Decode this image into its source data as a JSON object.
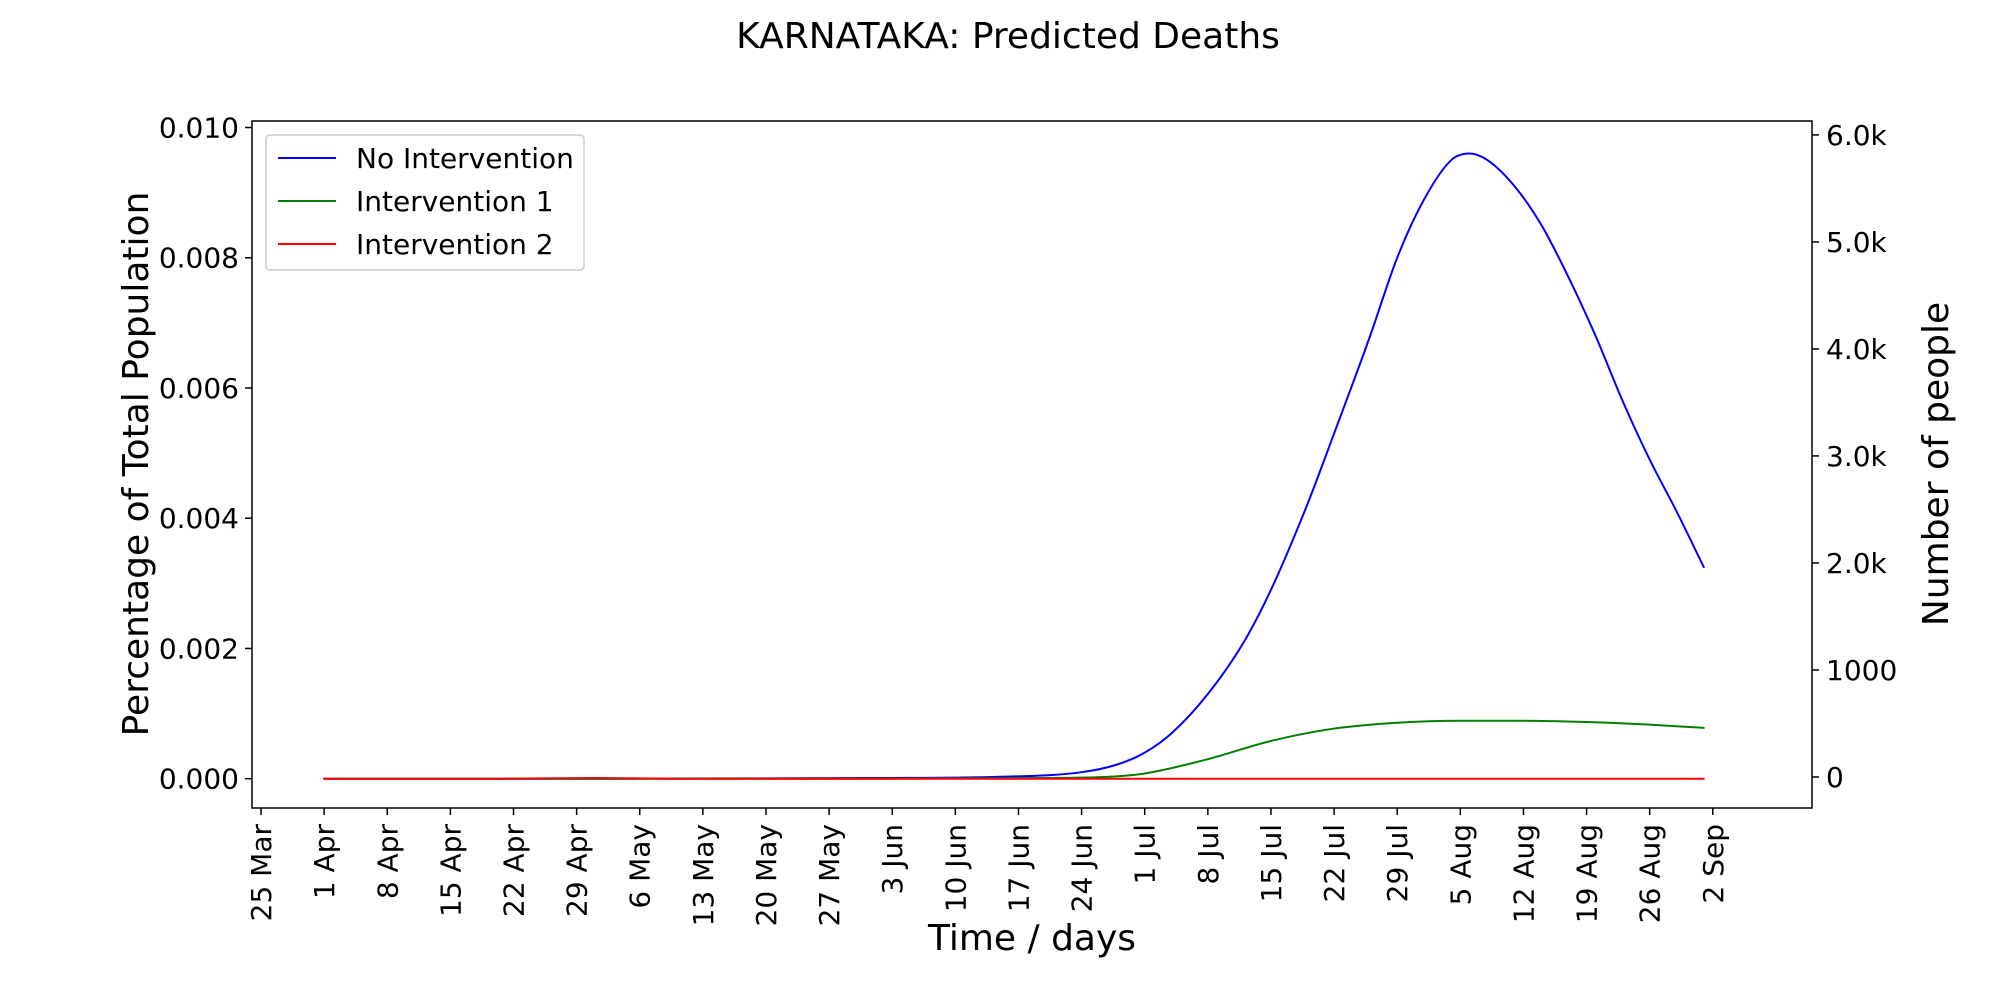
{
  "chart_data": {
    "type": "line",
    "title": "KARNATAKA: Predicted Deaths",
    "xlabel": "Time / days",
    "ylabel": "Percentage of Total Population",
    "ylabel_right": "Number of people",
    "x_ticks": [
      "25 Mar",
      "1 Apr",
      "8 Apr",
      "15 Apr",
      "22 Apr",
      "29 Apr",
      "6 May",
      "13 May",
      "20 May",
      "27 May",
      "3 Jun",
      "10 Jun",
      "17 Jun",
      "24 Jun",
      "1 Jul",
      "8 Jul",
      "15 Jul",
      "22 Jul",
      "29 Jul",
      "5 Aug",
      "12 Aug",
      "19 Aug",
      "26 Aug",
      "2 Sep"
    ],
    "y_ticks": [
      "0.000",
      "0.002",
      "0.004",
      "0.006",
      "0.008",
      "0.010"
    ],
    "y_tick_values": [
      0,
      0.002,
      0.004,
      0.006,
      0.008,
      0.01
    ],
    "y_right_ticks": [
      "0",
      "1000",
      "2.0k",
      "3.0k",
      "4.0k",
      "5.0k",
      "6.0k"
    ],
    "y_right_tick_values": [
      0,
      1000,
      2000,
      3000,
      4000,
      5000,
      6000
    ],
    "ylim": [
      -0.00045,
      0.0101
    ],
    "ylim_right": [
      -290,
      6130
    ],
    "xlim": [
      "2020-03-24",
      "2020-09-13"
    ],
    "legend_position": "upper left",
    "grid": false,
    "series": [
      {
        "name": "No Intervention",
        "color": "#0000ff",
        "x": [
          "2020-04-01",
          "2020-05-01",
          "2020-06-01",
          "2020-06-15",
          "2020-06-24",
          "2020-06-28",
          "2020-07-01",
          "2020-07-04",
          "2020-07-08",
          "2020-07-12",
          "2020-07-15",
          "2020-07-19",
          "2020-07-22",
          "2020-07-26",
          "2020-07-29",
          "2020-08-01",
          "2020-08-04",
          "2020-08-06",
          "2020-08-08",
          "2020-08-11",
          "2020-08-14",
          "2020-08-17",
          "2020-08-20",
          "2020-08-23",
          "2020-08-26",
          "2020-08-29",
          "2020-09-01"
        ],
        "y": [
          0,
          0,
          1e-05,
          3e-05,
          0.0001,
          0.00022,
          0.0004,
          0.0007,
          0.0013,
          0.0021,
          0.0029,
          0.0042,
          0.0053,
          0.0068,
          0.008,
          0.0089,
          0.0095,
          0.0096,
          0.0095,
          0.0091,
          0.0085,
          0.0077,
          0.0068,
          0.0058,
          0.0049,
          0.0041,
          0.00325
        ]
      },
      {
        "name": "Intervention 1",
        "color": "#008000",
        "x": [
          "2020-04-01",
          "2020-05-01",
          "2020-06-01",
          "2020-06-20",
          "2020-06-27",
          "2020-07-01",
          "2020-07-08",
          "2020-07-15",
          "2020-07-22",
          "2020-07-29",
          "2020-08-05",
          "2020-08-12",
          "2020-08-19",
          "2020-08-26",
          "2020-09-01"
        ],
        "y": [
          0,
          0,
          0,
          1e-05,
          3e-05,
          8e-05,
          0.0003,
          0.00058,
          0.00077,
          0.00086,
          0.00089,
          0.00089,
          0.00087,
          0.00083,
          0.00078
        ]
      },
      {
        "name": "Intervention 2",
        "color": "#ff0000",
        "x": [
          "2020-04-01",
          "2020-04-20",
          "2020-05-01",
          "2020-05-10",
          "2020-06-01",
          "2020-07-01",
          "2020-08-01",
          "2020-09-01"
        ],
        "y": [
          0,
          0,
          1e-05,
          0,
          0,
          0,
          0,
          0
        ]
      }
    ]
  }
}
